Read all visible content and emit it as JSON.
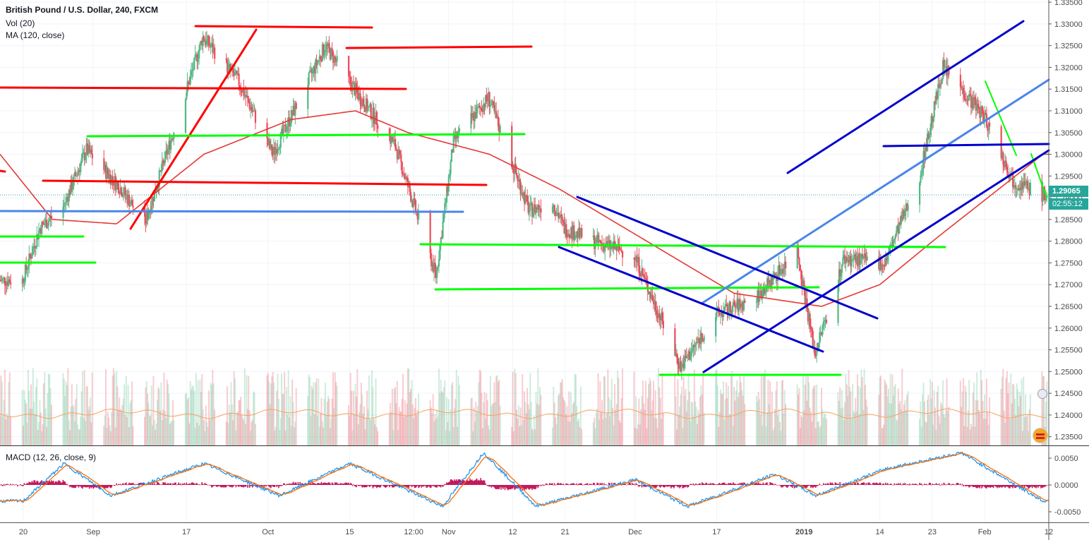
{
  "legend": {
    "title": "British Pound / U.S. Dollar, 240, FXCM",
    "vol": "Vol (20)",
    "ma": "MA (120, close)",
    "macd": "MACD (12, 26, close, 9)"
  },
  "price_tags": {
    "last": "1.29065",
    "countdown": "02:55:12"
  },
  "colors": {
    "up": "#53b987",
    "down": "#eb4d5c",
    "ma": "#e53935",
    "red_line": "#ff0000",
    "green_line": "#00ff00",
    "blue_line": "#0000cc",
    "light_blue_line": "#4a86e8",
    "macd": "#2196f3",
    "signal": "#ff6d00"
  },
  "chart_data": {
    "type": "candlestick",
    "symbol": "British Pound / U.S. Dollar",
    "timeframe": "240",
    "source": "FXCM",
    "y_ticks": [
      "1.33500",
      "1.33000",
      "1.32500",
      "1.32000",
      "1.31500",
      "1.31000",
      "1.30500",
      "1.30000",
      "1.29500",
      "1.29000",
      "1.28500",
      "1.28000",
      "1.27500",
      "1.27000",
      "1.26500",
      "1.26000",
      "1.25500",
      "1.25000",
      "1.24500",
      "1.24000",
      "1.23500"
    ],
    "x_ticks": [
      "20",
      "Sep",
      "17",
      "Oct",
      "15",
      "12:00",
      "Nov",
      "12",
      "21",
      "Dec",
      "17",
      "2019",
      "14",
      "23",
      "Feb",
      "12"
    ],
    "macd_ticks": [
      "0.0050",
      "0.0000",
      "-0.0050"
    ],
    "price_path": [
      [
        "2018-08-20",
        1.271
      ],
      [
        "2018-08-23",
        1.283
      ],
      [
        "2018-08-27",
        1.288
      ],
      [
        "2018-08-31",
        1.301
      ],
      [
        "2018-09-06",
        1.292
      ],
      [
        "2018-09-10",
        1.284
      ],
      [
        "2018-09-20",
        1.327
      ],
      [
        "2018-09-26",
        1.317
      ],
      [
        "2018-10-02",
        1.3
      ],
      [
        "2018-10-11",
        1.325
      ],
      [
        "2018-10-17",
        1.313
      ],
      [
        "2018-10-23",
        1.302
      ],
      [
        "2018-10-30",
        1.272
      ],
      [
        "2018-11-02",
        1.303
      ],
      [
        "2018-11-08",
        1.313
      ],
      [
        "2018-11-15",
        1.287
      ],
      [
        "2018-11-19",
        1.289
      ],
      [
        "2018-11-21",
        1.283
      ],
      [
        "2018-11-26",
        1.28
      ],
      [
        "2018-12-03",
        1.277
      ],
      [
        "2018-12-11",
        1.251
      ],
      [
        "2018-12-17",
        1.263
      ],
      [
        "2018-12-24",
        1.267
      ],
      [
        "2018-12-31",
        1.278
      ],
      [
        "2019-01-03",
        1.254
      ],
      [
        "2019-01-08",
        1.276
      ],
      [
        "2019-01-15",
        1.275
      ],
      [
        "2019-01-21",
        1.295
      ],
      [
        "2019-01-25",
        1.32
      ],
      [
        "2019-02-01",
        1.309
      ],
      [
        "2019-02-06",
        1.294
      ],
      [
        "2019-02-11",
        1.2907
      ]
    ],
    "ma120_path": [
      [
        "2018-08-16",
        1.3
      ],
      [
        "2018-08-25",
        1.285
      ],
      [
        "2018-09-05",
        1.284
      ],
      [
        "2018-09-20",
        1.3
      ],
      [
        "2018-10-05",
        1.308
      ],
      [
        "2018-10-16",
        1.31
      ],
      [
        "2018-10-25",
        1.305
      ],
      [
        "2018-11-08",
        1.3
      ],
      [
        "2018-11-20",
        1.292
      ],
      [
        "2018-12-05",
        1.28
      ],
      [
        "2018-12-20",
        1.268
      ],
      [
        "2019-01-04",
        1.265
      ],
      [
        "2019-01-14",
        1.27
      ],
      [
        "2019-01-24",
        1.281
      ],
      [
        "2019-02-11",
        1.3
      ]
    ],
    "macd_path": [
      [
        "2018-08-20",
        -0.003
      ],
      [
        "2018-08-27",
        0.004
      ],
      [
        "2018-09-04",
        -0.002
      ],
      [
        "2018-09-20",
        0.004
      ],
      [
        "2018-10-03",
        -0.002
      ],
      [
        "2018-10-15",
        0.004
      ],
      [
        "2018-10-31",
        -0.004
      ],
      [
        "2018-11-07",
        0.006
      ],
      [
        "2018-11-16",
        -0.004
      ],
      [
        "2018-12-03",
        0.001
      ],
      [
        "2018-12-12",
        -0.004
      ],
      [
        "2018-12-27",
        0.002
      ],
      [
        "2019-01-03",
        -0.002
      ],
      [
        "2019-01-15",
        0.003
      ],
      [
        "2019-01-28",
        0.006
      ],
      [
        "2019-02-11",
        -0.003
      ]
    ],
    "last_price": 1.29065,
    "ylim": [
      1.233,
      1.3355
    ]
  }
}
